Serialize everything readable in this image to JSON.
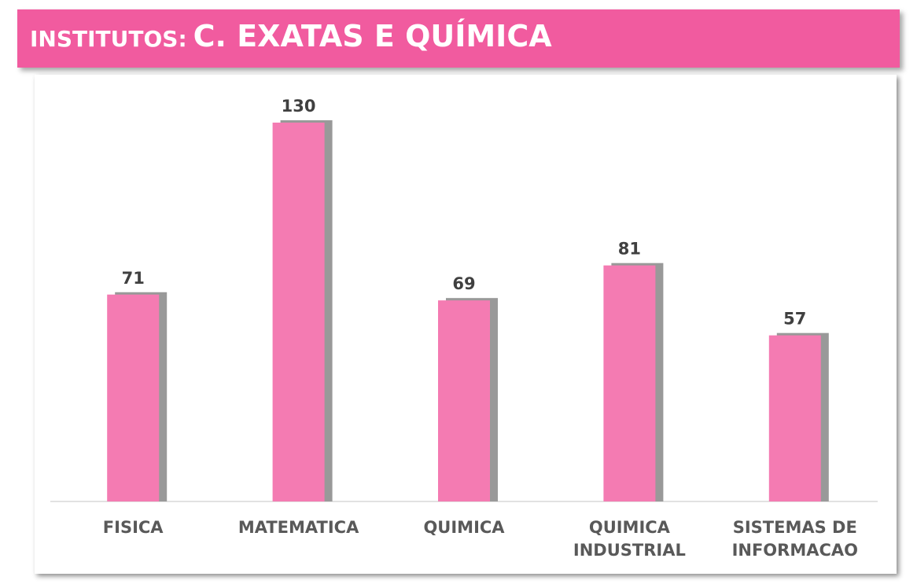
{
  "chart_data": {
    "type": "bar",
    "title_parts": [
      "INSTITUTOS:",
      "C. EXATAS E QUÍMICA"
    ],
    "categories": [
      "FISICA",
      "MATEMATICA",
      "QUIMICA",
      "QUIMICA INDUSTRIAL",
      "SISTEMAS DE INFORMACAO"
    ],
    "values": [
      71,
      130,
      69,
      81,
      57
    ],
    "color": "#f47bb2",
    "ylim": [
      0,
      130
    ]
  }
}
